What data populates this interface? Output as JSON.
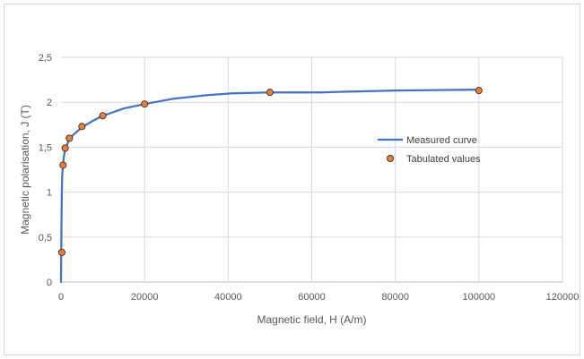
{
  "chart_data": {
    "type": "scatter",
    "title": "",
    "xlabel": "Magnetic field, H (A/m)",
    "ylabel": "Magnetic polarisation, J (T)",
    "xlim": [
      0,
      120000
    ],
    "ylim": [
      0,
      2.5
    ],
    "xticks": [
      0,
      20000,
      40000,
      60000,
      80000,
      100000,
      120000
    ],
    "xtick_labels": [
      "0",
      "20000",
      "40000",
      "60000",
      "80000",
      "100000",
      "120000"
    ],
    "yticks": [
      0,
      0.5,
      1,
      1.5,
      2,
      2.5
    ],
    "ytick_labels": [
      "0",
      "0,5",
      "1",
      "1,5",
      "2",
      "2,5"
    ],
    "grid": true,
    "legend_position": "right",
    "colors": {
      "line": "#4472c4",
      "marker_fill": "#ed7d31",
      "marker_edge": "#262626",
      "grid": "#d9d9d9",
      "axis": "#bfbfbf"
    },
    "series": [
      {
        "name": "Measured curve",
        "kind": "line",
        "x": [
          0,
          100,
          200,
          300,
          500,
          700,
          1000,
          2000,
          3000,
          5000,
          7500,
          10000,
          15000,
          20000,
          27000,
          35000,
          41000,
          50000,
          62000,
          70000,
          80000,
          100000
        ],
        "y": [
          0,
          0.6,
          0.98,
          1.2,
          1.32,
          1.4,
          1.48,
          1.59,
          1.64,
          1.72,
          1.79,
          1.85,
          1.93,
          1.98,
          2.04,
          2.08,
          2.1,
          2.11,
          2.11,
          2.12,
          2.13,
          2.14
        ]
      },
      {
        "name": "Tabulated values",
        "kind": "marker",
        "x": [
          200,
          500,
          1000,
          2000,
          5000,
          10000,
          20000,
          50000,
          100000
        ],
        "y": [
          0.33,
          1.3,
          1.49,
          1.6,
          1.73,
          1.85,
          1.98,
          2.11,
          2.13
        ]
      }
    ]
  }
}
